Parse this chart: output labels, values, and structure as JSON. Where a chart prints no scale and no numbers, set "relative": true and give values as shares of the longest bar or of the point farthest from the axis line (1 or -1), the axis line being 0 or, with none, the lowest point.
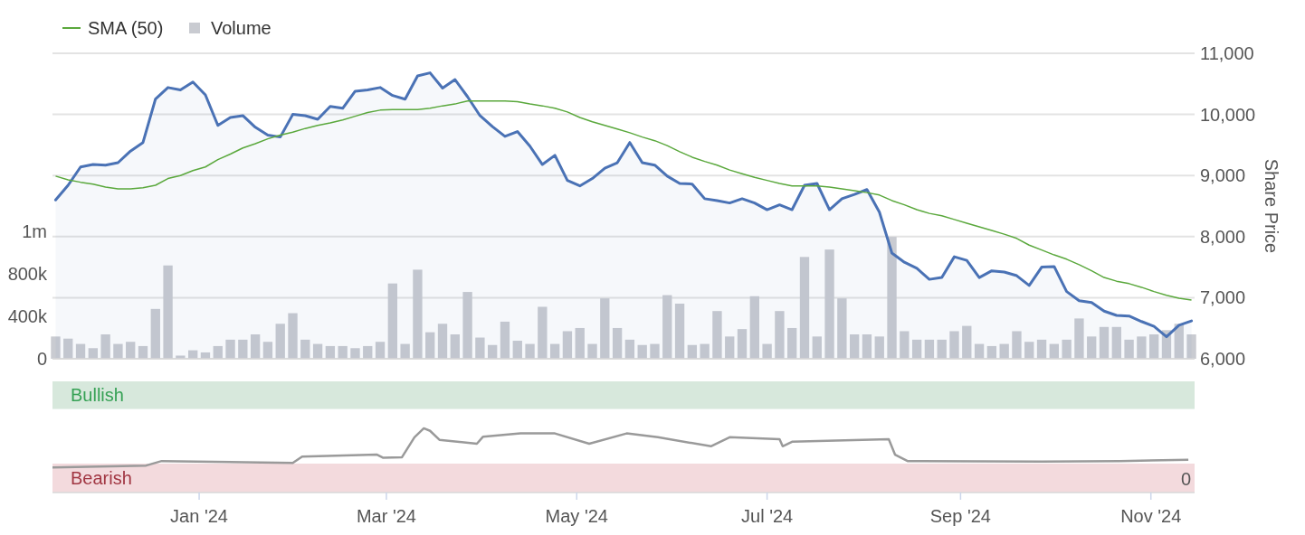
{
  "chart_data": [
    {
      "type": "area",
      "ylabel": "Share Price",
      "legend": "top left",
      "grid": "y",
      "tick_labels": "y",
      "xlim": [
        "2023-11-15",
        "2024-11-15"
      ],
      "ylim": [
        6000,
        11000
      ],
      "yticks": [
        {
          "value": 6000,
          "label": "6,000"
        },
        {
          "value": 7000,
          "label": "7,000"
        },
        {
          "value": 8000,
          "label": "8,000"
        },
        {
          "value": 9000,
          "label": "9,000"
        },
        {
          "value": 10000,
          "label": "10,000"
        },
        {
          "value": 11000,
          "label": "11,000"
        }
      ],
      "y2lim": [
        0,
        2880000
      ],
      "y2ticks": [
        {
          "value": 0,
          "label": "0"
        },
        {
          "value": 400000,
          "label": "400k"
        },
        {
          "value": 800000,
          "label": "800k"
        },
        {
          "value": 1200000,
          "label": "1m"
        }
      ],
      "x": [
        "2023-11-16",
        "2023-11-20",
        "2023-11-24",
        "2023-11-28",
        "2023-12-02",
        "2023-12-06",
        "2023-12-10",
        "2023-12-14",
        "2023-12-18",
        "2023-12-22",
        "2023-12-26",
        "2023-12-30",
        "2024-01-03",
        "2024-01-07",
        "2024-01-11",
        "2024-01-15",
        "2024-01-19",
        "2024-01-23",
        "2024-01-27",
        "2024-01-31",
        "2024-02-04",
        "2024-02-08",
        "2024-02-12",
        "2024-02-16",
        "2024-02-20",
        "2024-02-24",
        "2024-02-28",
        "2024-03-03",
        "2024-03-07",
        "2024-03-11",
        "2024-03-15",
        "2024-03-19",
        "2024-03-23",
        "2024-03-27",
        "2024-03-31",
        "2024-04-04",
        "2024-04-08",
        "2024-04-12",
        "2024-04-16",
        "2024-04-20",
        "2024-04-24",
        "2024-04-28",
        "2024-05-02",
        "2024-05-06",
        "2024-05-10",
        "2024-05-14",
        "2024-05-18",
        "2024-05-22",
        "2024-05-26",
        "2024-05-30",
        "2024-06-03",
        "2024-06-07",
        "2024-06-11",
        "2024-06-15",
        "2024-06-19",
        "2024-06-23",
        "2024-06-27",
        "2024-07-01",
        "2024-07-05",
        "2024-07-09",
        "2024-07-13",
        "2024-07-17",
        "2024-07-21",
        "2024-07-25",
        "2024-07-29",
        "2024-08-02",
        "2024-08-06",
        "2024-08-10",
        "2024-08-14",
        "2024-08-18",
        "2024-08-22",
        "2024-08-26",
        "2024-08-30",
        "2024-09-03",
        "2024-09-07",
        "2024-09-11",
        "2024-09-15",
        "2024-09-19",
        "2024-09-23",
        "2024-09-27",
        "2024-10-01",
        "2024-10-05",
        "2024-10-09",
        "2024-10-13",
        "2024-10-17",
        "2024-10-21",
        "2024-10-25",
        "2024-10-29",
        "2024-11-02",
        "2024-11-06",
        "2024-11-10",
        "2024-11-14"
      ],
      "series": [
        {
          "name": "Volume",
          "type": "bar",
          "axis": "y2",
          "color": "#c9cbd1",
          "values": [
            210000,
            190000,
            140000,
            100000,
            230000,
            140000,
            160000,
            120000,
            470000,
            880000,
            30000,
            80000,
            60000,
            120000,
            180000,
            180000,
            230000,
            160000,
            330000,
            430000,
            180000,
            140000,
            120000,
            120000,
            100000,
            120000,
            160000,
            710000,
            140000,
            840000,
            250000,
            330000,
            230000,
            630000,
            200000,
            130000,
            350000,
            170000,
            140000,
            490000,
            140000,
            260000,
            290000,
            140000,
            570000,
            290000,
            180000,
            130000,
            140000,
            600000,
            520000,
            130000,
            140000,
            450000,
            210000,
            280000,
            590000,
            140000,
            450000,
            290000,
            960000,
            210000,
            1030000,
            570000,
            230000,
            230000,
            210000,
            1150000,
            260000,
            180000,
            180000,
            180000,
            260000,
            310000,
            140000,
            120000,
            140000,
            260000,
            160000,
            180000,
            140000,
            180000,
            380000,
            210000,
            300000,
            300000,
            180000,
            210000,
            230000,
            270000,
            330000,
            230000
          ]
        },
        {
          "color": "#4a72b5",
          "values": [
            8600,
            8840,
            9140,
            9180,
            9170,
            9210,
            9400,
            9540,
            10250,
            10440,
            10400,
            10530,
            10320,
            9820,
            9950,
            9980,
            9790,
            9660,
            9630,
            10000,
            9980,
            9920,
            10130,
            10100,
            10380,
            10400,
            10440,
            10310,
            10250,
            10630,
            10680,
            10430,
            10570,
            10290,
            9980,
            9800,
            9640,
            9720,
            9480,
            9180,
            9330,
            8920,
            8830,
            8950,
            9120,
            9210,
            9540,
            9210,
            9170,
            8990,
            8870,
            8860,
            8620,
            8590,
            8550,
            8620,
            8550,
            8440,
            8520,
            8440,
            8840,
            8870,
            8440,
            8620,
            8690,
            8770,
            8400,
            7730,
            7580,
            7480,
            7300,
            7330,
            7670,
            7610,
            7330,
            7440,
            7420,
            7360,
            7200,
            7500,
            7510,
            7100,
            6950,
            6920,
            6780,
            6710,
            6700,
            6610,
            6530,
            6360,
            6550,
            6620
          ]
        },
        {
          "name": "SMA (50)",
          "type": "line",
          "color": "#5aa83c",
          "values": [
            8990,
            8930,
            8890,
            8860,
            8810,
            8780,
            8780,
            8800,
            8840,
            8950,
            9000,
            9080,
            9140,
            9260,
            9350,
            9450,
            9520,
            9600,
            9660,
            9710,
            9770,
            9820,
            9860,
            9910,
            9970,
            10030,
            10070,
            10080,
            10080,
            10080,
            10100,
            10140,
            10170,
            10220,
            10220,
            10220,
            10220,
            10210,
            10170,
            10140,
            10100,
            10040,
            9950,
            9880,
            9820,
            9760,
            9700,
            9630,
            9570,
            9490,
            9390,
            9300,
            9230,
            9170,
            9090,
            9030,
            8970,
            8920,
            8870,
            8830,
            8830,
            8830,
            8810,
            8780,
            8750,
            8720,
            8680,
            8590,
            8520,
            8440,
            8380,
            8340,
            8280,
            8220,
            8160,
            8100,
            8040,
            7970,
            7860,
            7780,
            7700,
            7630,
            7540,
            7440,
            7330,
            7270,
            7230,
            7170,
            7100,
            7040,
            6990,
            6960
          ]
        }
      ]
    },
    {
      "type": "line",
      "relative": true,
      "tick_labels": "x",
      "xlim": [
        "2023-11-15",
        "2024-11-15"
      ],
      "xticks": [
        {
          "value": "2024-01-01",
          "label": "Jan '24"
        },
        {
          "value": "2024-03-01",
          "label": "Mar '24"
        },
        {
          "value": "2024-05-01",
          "label": "May '24"
        },
        {
          "value": "2024-07-01",
          "label": "Jul '24"
        },
        {
          "value": "2024-09-01",
          "label": "Sep '24"
        },
        {
          "value": "2024-11-01",
          "label": "Nov '24"
        }
      ],
      "bands": [
        {
          "axis": "y",
          "from": 1.3,
          "to": 1.73,
          "label": "Bullish",
          "color": "#d7e8dc"
        },
        {
          "axis": "y",
          "from": 0,
          "to": 0.45,
          "label": "Bearish",
          "color": "#f3dadd"
        }
      ],
      "annotations": [
        "0"
      ],
      "x": [
        "2023-11-15",
        "2023-12-15",
        "2023-12-20",
        "2024-01-31",
        "2024-02-03",
        "2024-02-27",
        "2024-02-29",
        "2024-03-06",
        "2024-03-10",
        "2024-03-13",
        "2024-03-15",
        "2024-03-18",
        "2024-03-30",
        "2024-04-01",
        "2024-04-13",
        "2024-04-24",
        "2024-05-05",
        "2024-05-17",
        "2024-05-27",
        "2024-06-13",
        "2024-06-19",
        "2024-07-05",
        "2024-07-06",
        "2024-07-09",
        "2024-08-09",
        "2024-08-11",
        "2024-08-15",
        "2024-09-27",
        "2024-10-22",
        "2024-11-13"
      ],
      "series": [
        {
          "color": "#9a9a9a",
          "values": [
            0.39,
            0.42,
            0.49,
            0.46,
            0.56,
            0.59,
            0.54,
            0.55,
            0.86,
            1.0,
            0.96,
            0.82,
            0.76,
            0.87,
            0.92,
            0.92,
            0.76,
            0.92,
            0.86,
            0.72,
            0.86,
            0.83,
            0.72,
            0.79,
            0.83,
            0.59,
            0.49,
            0.48,
            0.49,
            0.51
          ]
        }
      ]
    }
  ]
}
